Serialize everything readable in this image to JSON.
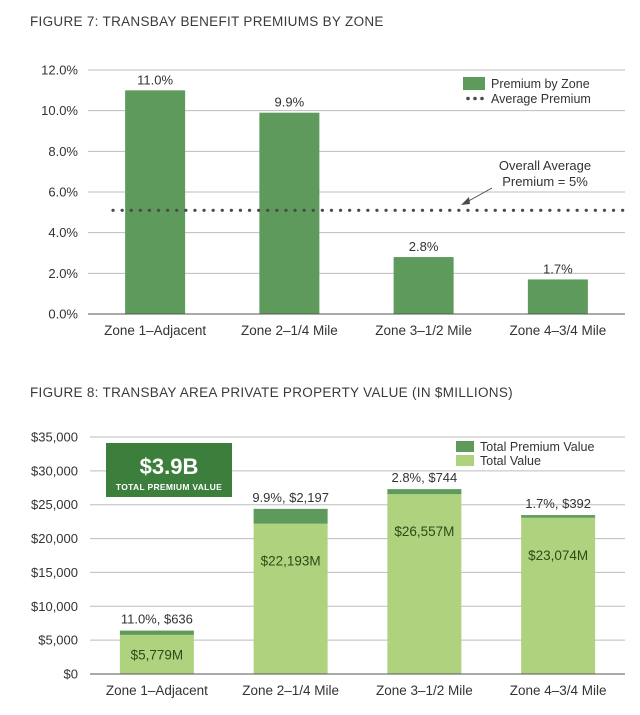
{
  "figures": [
    {
      "title": "FIGURE 7: TRANSBAY BENEFIT PREMIUMS BY ZONE"
    },
    {
      "title": "FIGURE 8: TRANSBAY AREA PRIVATE PROPERTY VALUE (IN $MILLIONS)"
    }
  ],
  "chart_data": [
    {
      "type": "bar",
      "title": "FIGURE 7: TRANSBAY BENEFIT PREMIUMS BY ZONE",
      "categories": [
        "Zone 1–Adjacent",
        "Zone 2–1/4 Mile",
        "Zone 3–1/2 Mile",
        "Zone 4–3/4 Mile"
      ],
      "series": [
        {
          "name": "Premium by Zone",
          "values": [
            11.0,
            9.9,
            2.8,
            1.7
          ],
          "color": "#5e9a5b"
        }
      ],
      "data_labels": [
        "11.0%",
        "9.9%",
        "2.8%",
        "1.7%"
      ],
      "reference_line": {
        "name": "Average Premium",
        "value": 5.1
      },
      "annotation": [
        "Overall Average",
        "Premium = 5%"
      ],
      "ylim": [
        0,
        12
      ],
      "yticks": [
        0,
        2,
        4,
        6,
        8,
        10,
        12
      ],
      "ytick_labels": [
        "0.0%",
        "2.0%",
        "4.0%",
        "6.0%",
        "8.0%",
        "10.0%",
        "12.0%"
      ],
      "legend": [
        "Premium by Zone",
        "Average Premium"
      ],
      "legend_position": "top-right",
      "grid": true,
      "xlabel": "",
      "ylabel": ""
    },
    {
      "type": "bar",
      "stacked": true,
      "title": "FIGURE 8: TRANSBAY AREA PRIVATE PROPERTY VALUE (IN $MILLIONS)",
      "categories": [
        "Zone 1–Adjacent",
        "Zone 2–1/4 Mile",
        "Zone 3–1/2 Mile",
        "Zone 4–3/4 Mile"
      ],
      "series": [
        {
          "name": "Total Value",
          "values": [
            5779,
            22193,
            26557,
            23074
          ],
          "color": "#afd27e"
        },
        {
          "name": "Total Premium Value",
          "values": [
            636,
            2197,
            744,
            392
          ],
          "color": "#5e9a5b"
        }
      ],
      "top_labels": [
        "11.0%, $636",
        "9.9%, $2,197",
        "2.8%, $744",
        "1.7%, $392"
      ],
      "inner_labels": [
        "$5,779M",
        "$22,193M",
        "$26,557M",
        "$23,074M"
      ],
      "callout": {
        "value": "$3.9B",
        "caption": "TOTAL PREMIUM VALUE",
        "color": "#3c7f3c"
      },
      "ylim": [
        0,
        35000
      ],
      "yticks": [
        0,
        5000,
        10000,
        15000,
        20000,
        25000,
        30000,
        35000
      ],
      "ytick_labels": [
        "$0",
        "$5,000",
        "$10,000",
        "$15,000",
        "$20,000",
        "$25,000",
        "$30,000",
        "$35,000"
      ],
      "legend": [
        "Total Premium Value",
        "Total Value"
      ],
      "legend_position": "top-right",
      "grid": true,
      "xlabel": "",
      "ylabel": ""
    }
  ],
  "colors": {
    "grid": "#bdbdbd",
    "axis": "#555555",
    "text": "#333333",
    "dots": "#4a4a4a",
    "callout_text": "#ffffff"
  }
}
